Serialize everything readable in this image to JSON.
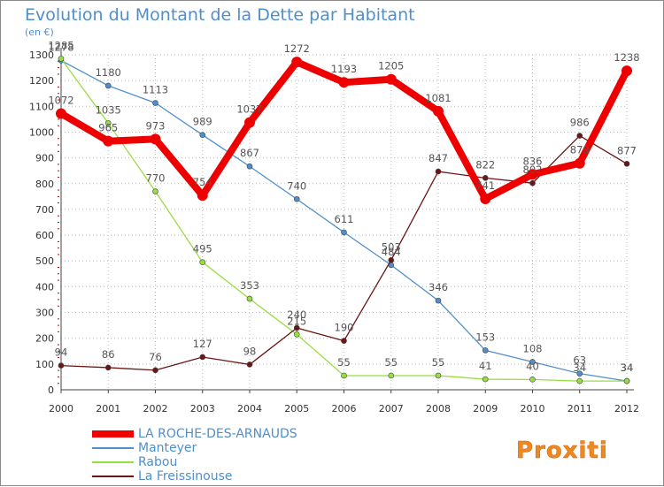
{
  "chart_data": {
    "type": "line",
    "title": "Evolution du Montant de la Dette par Habitant",
    "ylabel": "(en €)",
    "xlabel": "",
    "ylim": [
      0,
      1300
    ],
    "yticks": [
      0,
      100,
      200,
      300,
      400,
      500,
      600,
      700,
      800,
      900,
      1000,
      1100,
      1200,
      1300
    ],
    "grid": true,
    "legend_position": "bottom-left",
    "categories": [
      "2000",
      "2001",
      "2002",
      "2003",
      "2004",
      "2005",
      "2006",
      "2007",
      "2008",
      "2009",
      "2010",
      "2011",
      "2012"
    ],
    "series": [
      {
        "name": "LA ROCHE-DES-ARNAUDS",
        "color": "#ee0000",
        "values": [
          1072,
          965,
          973,
          754,
          1037,
          1272,
          1193,
          1205,
          1081,
          741,
          836,
          879,
          1238
        ]
      },
      {
        "name": "Manteyer",
        "color": "#4f8fcc",
        "values": [
          1278,
          1180,
          1113,
          989,
          867,
          740,
          611,
          484,
          346,
          153,
          108,
          63,
          34
        ]
      },
      {
        "name": "Rabou",
        "color": "#99dd44",
        "values": [
          1285,
          1035,
          770,
          495,
          353,
          215,
          55,
          55,
          55,
          41,
          40,
          34,
          34
        ]
      },
      {
        "name": "La Freissinouse",
        "color": "#6b1515",
        "values": [
          94,
          86,
          76,
          127,
          98,
          240,
          190,
          503,
          847,
          822,
          802,
          986,
          877
        ]
      }
    ]
  },
  "logo": {
    "text": "Proxiti"
  },
  "colors": {
    "title": "#4f8fcc",
    "axis": "#555555",
    "grid": "#bbbbbb",
    "label": "#555555"
  }
}
